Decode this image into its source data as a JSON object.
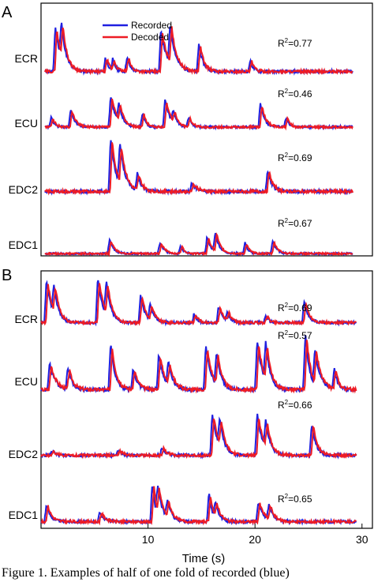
{
  "colors": {
    "recorded": "#1f1fe0",
    "decoded": "#ee1c25",
    "frame": "#000000"
  },
  "legend": {
    "recorded": "Recorded",
    "decoded": "Decoded"
  },
  "xaxis": {
    "label": "Time (s)",
    "ticks": [
      10,
      20,
      30
    ]
  },
  "caption": "Figure 1.  Examples of half of one fold of recorded (blue)",
  "chart_data": [
    {
      "panel": "A",
      "type": "line",
      "xlim": [
        0,
        30
      ],
      "legend_position": "top",
      "traces": [
        {
          "label": "ECR",
          "r2": "R²=0.77",
          "events": [
            [
              1.0,
              0.9,
              0.55
            ],
            [
              1.6,
              0.7,
              0.4
            ],
            [
              5.9,
              0.28,
              0.3
            ],
            [
              6.6,
              0.22,
              0.3
            ],
            [
              8.0,
              0.3,
              0.3
            ],
            [
              11.3,
              0.82,
              0.6
            ],
            [
              12.2,
              0.78,
              0.5
            ],
            [
              15.0,
              0.55,
              0.4
            ],
            [
              20.0,
              0.22,
              0.3
            ]
          ]
        },
        {
          "label": "ECU",
          "r2": "R²=0.46",
          "events": [
            [
              0.6,
              0.25,
              0.3
            ],
            [
              2.5,
              0.45,
              0.4
            ],
            [
              6.4,
              0.8,
              0.5
            ],
            [
              7.2,
              0.45,
              0.4
            ],
            [
              9.5,
              0.35,
              0.3
            ],
            [
              11.7,
              0.7,
              0.5
            ],
            [
              12.5,
              0.3,
              0.3
            ],
            [
              14.0,
              0.25,
              0.3
            ],
            [
              21.0,
              0.6,
              0.4
            ],
            [
              23.5,
              0.25,
              0.3
            ]
          ]
        },
        {
          "label": "EDC2",
          "r2": "R²=0.69",
          "events": [
            [
              6.4,
              1.0,
              0.5
            ],
            [
              7.3,
              0.75,
              0.5
            ],
            [
              9.0,
              0.3,
              0.4
            ],
            [
              14.3,
              0.15,
              0.5
            ],
            [
              21.7,
              0.4,
              0.4
            ]
          ]
        },
        {
          "label": "EDC1",
          "r2": "R²=0.67",
          "events": [
            [
              6.3,
              0.45,
              0.4
            ],
            [
              11.2,
              0.35,
              0.4
            ],
            [
              13.2,
              0.25,
              0.3
            ],
            [
              15.8,
              0.55,
              0.4
            ],
            [
              16.6,
              0.6,
              0.4
            ],
            [
              19.5,
              0.35,
              0.3
            ],
            [
              22.2,
              0.4,
              0.4
            ]
          ]
        }
      ]
    },
    {
      "panel": "B",
      "type": "line",
      "xlim": [
        0,
        29.5
      ],
      "traces": [
        {
          "label": "ECR",
          "r2": "R²=0.69",
          "events": [
            [
              0.5,
              0.9,
              0.5
            ],
            [
              1.2,
              0.6,
              0.4
            ],
            [
              5.3,
              0.95,
              0.5
            ],
            [
              6.1,
              0.7,
              0.4
            ],
            [
              9.3,
              0.6,
              0.4
            ],
            [
              10.2,
              0.35,
              0.4
            ],
            [
              14.3,
              0.2,
              0.3
            ],
            [
              16.6,
              0.35,
              0.4
            ],
            [
              17.4,
              0.2,
              0.3
            ],
            [
              21.0,
              0.15,
              0.3
            ],
            [
              24.6,
              0.45,
              0.4
            ]
          ]
        },
        {
          "label": "ECU",
          "r2": "R²=0.57",
          "events": [
            [
              0.8,
              0.45,
              0.5
            ],
            [
              2.5,
              0.35,
              0.4
            ],
            [
              6.5,
              0.8,
              0.4
            ],
            [
              8.6,
              0.35,
              0.4
            ],
            [
              11.0,
              0.6,
              0.5
            ],
            [
              11.9,
              0.4,
              0.4
            ],
            [
              15.4,
              0.75,
              0.5
            ],
            [
              16.4,
              0.55,
              0.4
            ],
            [
              20.2,
              0.85,
              0.5
            ],
            [
              21.0,
              0.65,
              0.4
            ],
            [
              24.7,
              0.95,
              0.4
            ],
            [
              25.6,
              0.6,
              0.5
            ],
            [
              27.4,
              0.35,
              0.3
            ]
          ]
        },
        {
          "label": "EDC2",
          "r2": "R²=0.66",
          "events": [
            [
              1.0,
              0.1,
              0.3
            ],
            [
              7.2,
              0.1,
              0.4
            ],
            [
              11.3,
              0.15,
              0.4
            ],
            [
              16.0,
              0.85,
              0.5
            ],
            [
              16.7,
              0.55,
              0.4
            ],
            [
              20.2,
              0.85,
              0.5
            ],
            [
              21.0,
              0.55,
              0.4
            ],
            [
              25.3,
              0.65,
              0.4
            ]
          ]
        },
        {
          "label": "EDC1",
          "r2": "R²=0.65",
          "events": [
            [
              0.5,
              0.35,
              0.4
            ],
            [
              5.5,
              0.2,
              0.4
            ],
            [
              10.4,
              0.8,
              0.3
            ],
            [
              10.9,
              0.6,
              0.5
            ],
            [
              11.8,
              0.35,
              0.4
            ],
            [
              15.7,
              0.6,
              0.3
            ],
            [
              16.3,
              0.35,
              0.4
            ],
            [
              20.3,
              0.4,
              0.5
            ],
            [
              21.3,
              0.3,
              0.4
            ]
          ]
        }
      ]
    }
  ]
}
